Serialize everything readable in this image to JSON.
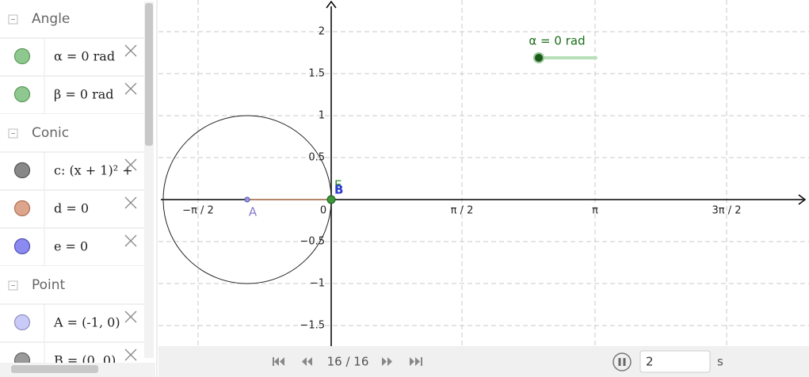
{
  "algebra": {
    "groups": [
      {
        "title": "Angle",
        "items": [
          "α = 0 rad",
          "β = 0 rad"
        ]
      },
      {
        "title": "Conic",
        "items": [
          "c: (x + 1)² +",
          "d = 0",
          "e = 0"
        ]
      },
      {
        "title": "Point",
        "items": [
          "A = (-1, 0)",
          "B = (0, 0)"
        ]
      }
    ]
  },
  "graphics": {
    "x_tick_labels": [
      "−π / 2",
      "0",
      "π / 2",
      "π",
      "3π / 2"
    ],
    "y_tick_labels": [
      "2",
      "1.5",
      "1",
      "0.5",
      "−0.5",
      "−1",
      "−1.5"
    ],
    "slider_label": "α = 0 rad",
    "point_labels": [
      "A",
      "B",
      "E"
    ]
  },
  "toolbar": {
    "frame": "16 / 16",
    "speed": "2",
    "unit": "s"
  }
}
